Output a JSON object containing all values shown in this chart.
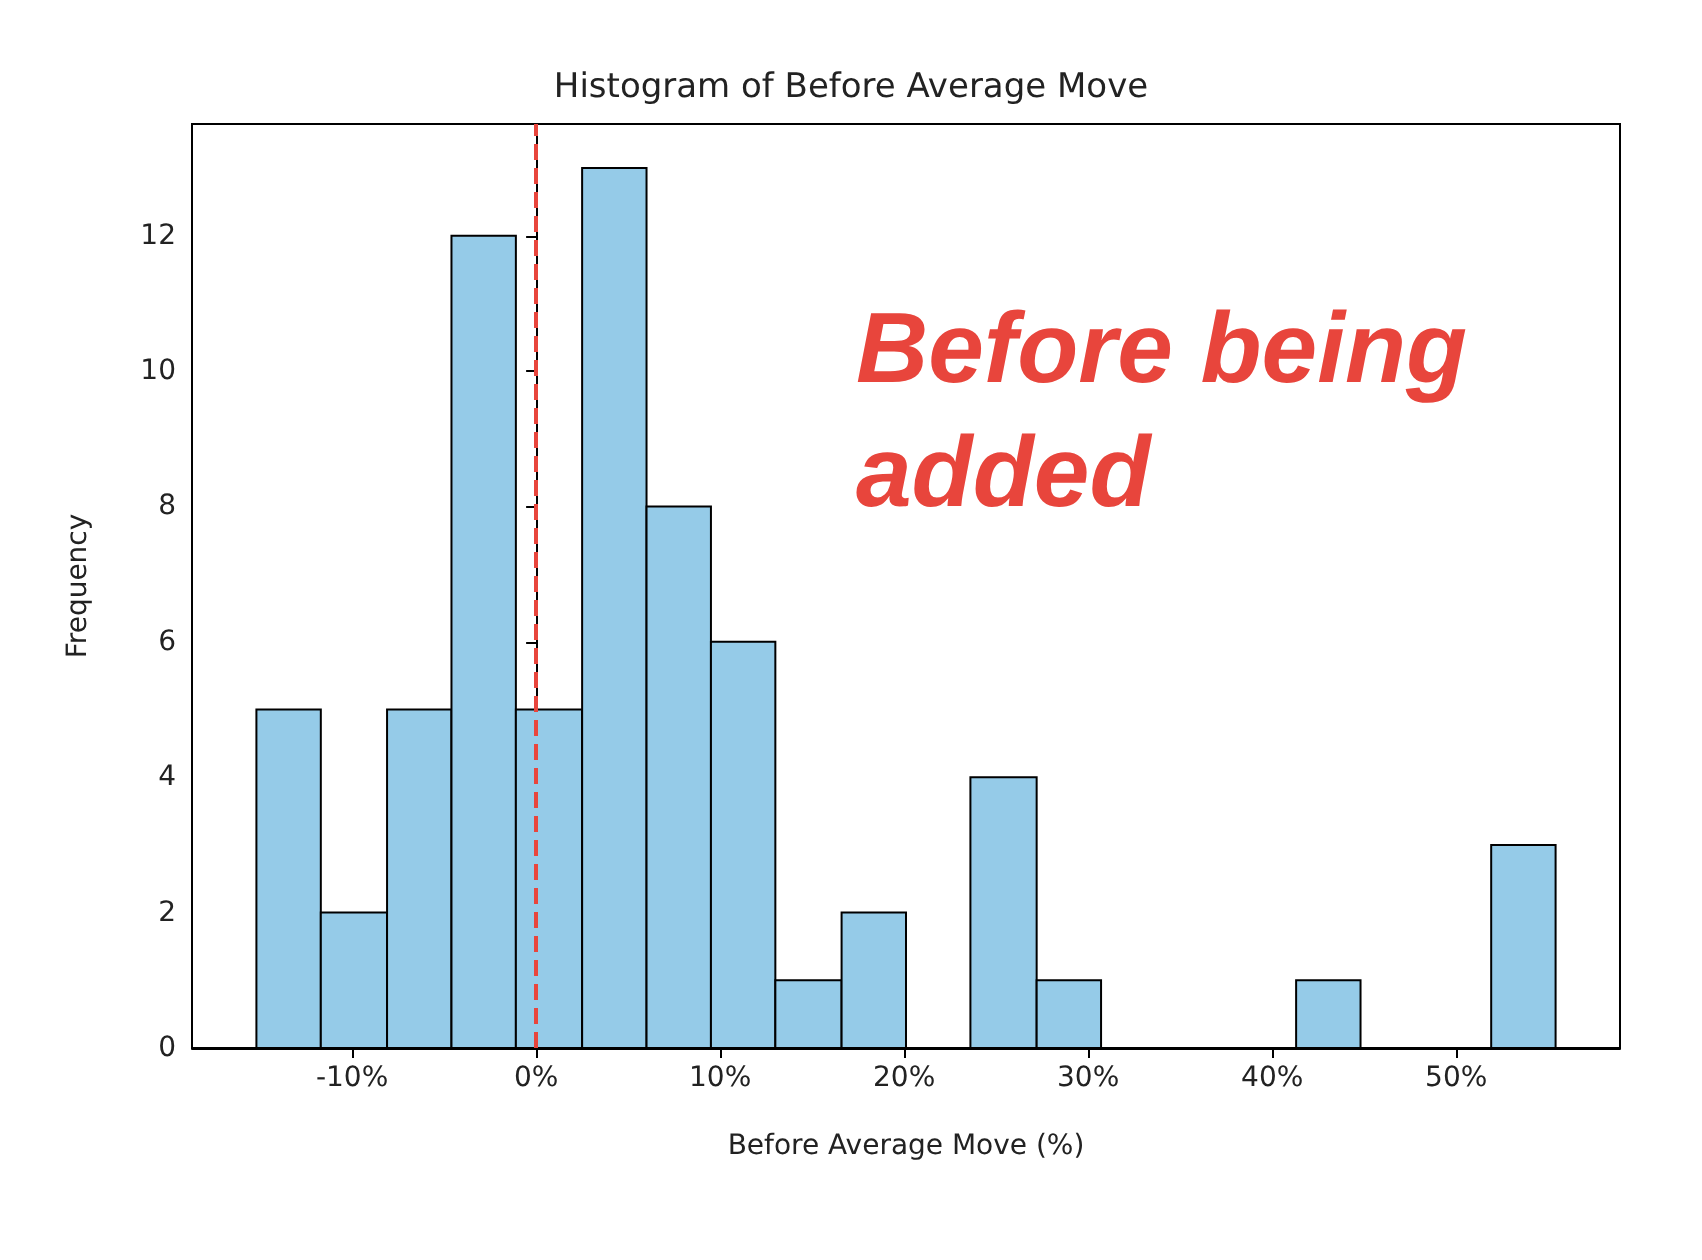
{
  "chart_data": {
    "type": "histogram",
    "title": "Histogram of Before Average Move",
    "xlabel": "Before Average Move (%)",
    "ylabel": "Frequency",
    "bins": [
      -15.2,
      -11.7,
      -8.1,
      -4.6,
      -1.1,
      2.5,
      6.0,
      9.5,
      13.0,
      16.6,
      20.1,
      23.6,
      27.2,
      30.7,
      41.3,
      44.8,
      51.9,
      55.4
    ],
    "values": [
      5,
      2,
      5,
      12,
      5,
      13,
      8,
      6,
      1,
      2,
      0,
      4,
      1,
      0,
      1,
      0,
      3
    ],
    "color": "#95cbe8",
    "xlim": [
      -18.7,
      58.9
    ],
    "xticks": [
      {
        "value": -10,
        "label": "-10%"
      },
      {
        "value": 0,
        "label": "0%"
      },
      {
        "value": 10,
        "label": "10%"
      },
      {
        "value": 20,
        "label": "20%"
      },
      {
        "value": 30,
        "label": "30%"
      },
      {
        "value": 40,
        "label": "40%"
      },
      {
        "value": 50,
        "label": "50%"
      }
    ],
    "ylim": [
      0,
      13.65
    ],
    "yticks": [
      0,
      2,
      4,
      6,
      8,
      10,
      12
    ],
    "ref_lines": [
      {
        "axis": "x",
        "value": 0,
        "color": "#e8453c",
        "line_style": "dashed"
      }
    ],
    "annotations": [
      "Before being added"
    ],
    "grid": false
  }
}
